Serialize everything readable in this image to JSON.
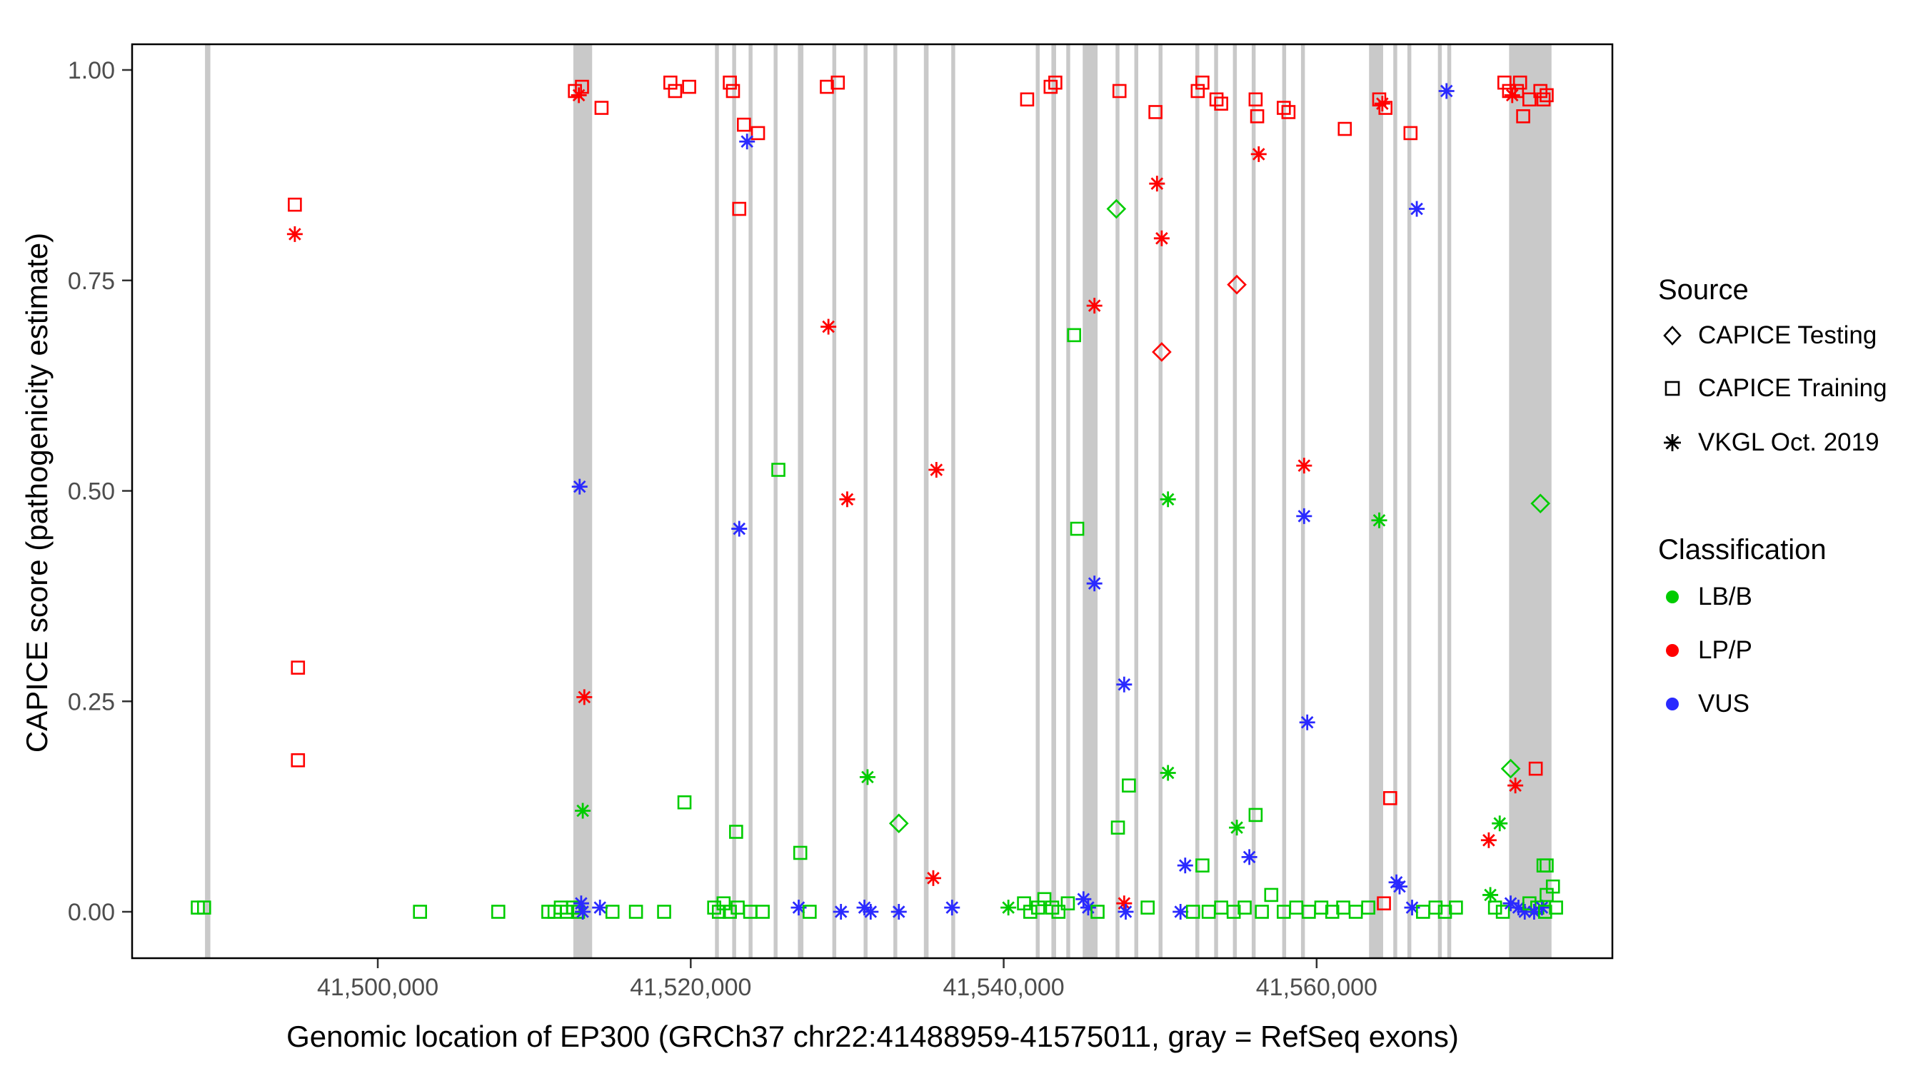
{
  "chart_data": {
    "type": "scatter",
    "title": "",
    "xlabel": "Genomic location of EP300 (GRCh37 chr22:41488959-41575011, gray = RefSeq exons)",
    "ylabel": "CAPICE score (pathogenicity estimate)",
    "xlim": [
      41484300,
      41578900
    ],
    "ylim": [
      0,
      1
    ],
    "x_ticks": [
      41500000,
      41520000,
      41540000,
      41560000
    ],
    "x_tick_labels": [
      "41,500,000",
      "41,520,000",
      "41,540,000",
      "41,560,000"
    ],
    "y_ticks": [
      0,
      0.25,
      0.5,
      0.75,
      1
    ],
    "y_tick_labels": [
      "0.00",
      "0.25",
      "0.50",
      "0.75",
      "1.00"
    ],
    "grid": false,
    "legend_position": "right",
    "legend": {
      "source": {
        "title": "Source",
        "items": [
          {
            "label": "CAPICE Testing",
            "shape": "diamond"
          },
          {
            "label": "CAPICE Training",
            "shape": "square"
          },
          {
            "label": "VKGL Oct. 2019",
            "shape": "asterisk"
          }
        ]
      },
      "classification": {
        "title": "Classification",
        "items": [
          {
            "label": "LB/B",
            "color_key": "B"
          },
          {
            "label": "LP/P",
            "color_key": "P"
          },
          {
            "label": "VUS",
            "color_key": "U"
          }
        ]
      }
    },
    "colors": {
      "B": "#00CC00",
      "P": "#FF0000",
      "U": "#2A2AFF"
    },
    "exon_color": "#C9C9C9",
    "source_codes": {
      "tr": "CAPICE Training",
      "te": "CAPICE Testing",
      "vk": "VKGL Oct. 2019"
    },
    "class_codes": {
      "B": "LB/B",
      "P": "LP/P",
      "U": "VUS"
    },
    "exons": [
      [
        41488959,
        41489300
      ],
      [
        41512500,
        41513700
      ],
      [
        41521550,
        41521800
      ],
      [
        41522650,
        41522900
      ],
      [
        41523700,
        41523950
      ],
      [
        41525300,
        41525550
      ],
      [
        41526850,
        41527200
      ],
      [
        41529050,
        41529300
      ],
      [
        41531050,
        41531300
      ],
      [
        41532950,
        41533200
      ],
      [
        41534900,
        41535200
      ],
      [
        41536650,
        41536900
      ],
      [
        41542050,
        41542300
      ],
      [
        41543050,
        41543350
      ],
      [
        41544000,
        41544250
      ],
      [
        41545050,
        41546000
      ],
      [
        41547150,
        41547400
      ],
      [
        41548350,
        41548600
      ],
      [
        41549900,
        41550150
      ],
      [
        41552250,
        41552500
      ],
      [
        41553450,
        41553700
      ],
      [
        41554650,
        41554900
      ],
      [
        41555850,
        41556100
      ],
      [
        41557800,
        41558050
      ],
      [
        41559000,
        41559250
      ],
      [
        41563350,
        41564250
      ],
      [
        41564900,
        41565150
      ],
      [
        41565800,
        41566050
      ],
      [
        41567750,
        41568000
      ],
      [
        41568350,
        41568600
      ],
      [
        41572300,
        41575011
      ]
    ],
    "points": [
      [
        41488500,
        0.005,
        "tr",
        "B"
      ],
      [
        41488900,
        0.005,
        "tr",
        "B"
      ],
      [
        41494700,
        0.84,
        "tr",
        "P"
      ],
      [
        41494700,
        0.805,
        "vk",
        "P"
      ],
      [
        41494900,
        0.29,
        "tr",
        "P"
      ],
      [
        41494900,
        0.18,
        "tr",
        "P"
      ],
      [
        41502700,
        0.0,
        "tr",
        "B"
      ],
      [
        41507700,
        0.0,
        "tr",
        "B"
      ],
      [
        41512600,
        0.975,
        "tr",
        "P"
      ],
      [
        41512850,
        0.97,
        "vk",
        "P"
      ],
      [
        41513050,
        0.98,
        "tr",
        "P"
      ],
      [
        41514300,
        0.955,
        "tr",
        "P"
      ],
      [
        41512900,
        0.505,
        "vk",
        "U"
      ],
      [
        41513200,
        0.255,
        "vk",
        "P"
      ],
      [
        41513100,
        0.12,
        "vk",
        "B"
      ],
      [
        41510900,
        0.0,
        "tr",
        "B"
      ],
      [
        41511300,
        0.0,
        "tr",
        "B"
      ],
      [
        41511700,
        0.005,
        "tr",
        "B"
      ],
      [
        41512100,
        0.0,
        "tr",
        "B"
      ],
      [
        41512500,
        0.005,
        "tr",
        "B"
      ],
      [
        41512800,
        0.0,
        "tr",
        "B"
      ],
      [
        41513000,
        0.01,
        "vk",
        "U"
      ],
      [
        41513100,
        0.0,
        "vk",
        "U"
      ],
      [
        41514200,
        0.005,
        "vk",
        "U"
      ],
      [
        41515000,
        0.0,
        "tr",
        "B"
      ],
      [
        41516500,
        0.0,
        "tr",
        "B"
      ],
      [
        41518700,
        0.985,
        "tr",
        "P"
      ],
      [
        41519000,
        0.975,
        "tr",
        "P"
      ],
      [
        41519900,
        0.98,
        "tr",
        "P"
      ],
      [
        41519600,
        0.13,
        "tr",
        "B"
      ],
      [
        41518300,
        0.0,
        "tr",
        "B"
      ],
      [
        41522500,
        0.985,
        "tr",
        "P"
      ],
      [
        41522700,
        0.975,
        "tr",
        "P"
      ],
      [
        41523100,
        0.835,
        "tr",
        "P"
      ],
      [
        41523400,
        0.935,
        "tr",
        "P"
      ],
      [
        41524300,
        0.925,
        "tr",
        "P"
      ],
      [
        41523600,
        0.915,
        "vk",
        "U"
      ],
      [
        41523100,
        0.455,
        "vk",
        "U"
      ],
      [
        41522900,
        0.095,
        "tr",
        "B"
      ],
      [
        41521500,
        0.005,
        "tr",
        "B"
      ],
      [
        41521800,
        0.0,
        "tr",
        "B"
      ],
      [
        41522100,
        0.01,
        "tr",
        "B"
      ],
      [
        41522500,
        0.0,
        "tr",
        "B"
      ],
      [
        41523000,
        0.005,
        "tr",
        "B"
      ],
      [
        41523800,
        0.0,
        "tr",
        "B"
      ],
      [
        41524600,
        0.0,
        "tr",
        "B"
      ],
      [
        41525600,
        0.525,
        "tr",
        "B"
      ],
      [
        41527000,
        0.07,
        "tr",
        "B"
      ],
      [
        41526900,
        0.005,
        "vk",
        "U"
      ],
      [
        41527600,
        0.0,
        "tr",
        "B"
      ],
      [
        41528700,
        0.98,
        "tr",
        "P"
      ],
      [
        41529400,
        0.985,
        "tr",
        "P"
      ],
      [
        41528800,
        0.695,
        "vk",
        "P"
      ],
      [
        41530000,
        0.49,
        "vk",
        "P"
      ],
      [
        41531300,
        0.16,
        "vk",
        "B"
      ],
      [
        41529600,
        0.0,
        "vk",
        "U"
      ],
      [
        41531100,
        0.005,
        "vk",
        "U"
      ],
      [
        41531500,
        0.0,
        "vk",
        "U"
      ],
      [
        41533300,
        0.105,
        "te",
        "B"
      ],
      [
        41533300,
        0.0,
        "vk",
        "U"
      ],
      [
        41535700,
        0.525,
        "vk",
        "P"
      ],
      [
        41535500,
        0.04,
        "vk",
        "P"
      ],
      [
        41536700,
        0.005,
        "vk",
        "U"
      ],
      [
        41540300,
        0.005,
        "vk",
        "B"
      ],
      [
        41541500,
        0.965,
        "tr",
        "P"
      ],
      [
        41543000,
        0.98,
        "tr",
        "P"
      ],
      [
        41543300,
        0.985,
        "tr",
        "P"
      ],
      [
        41541300,
        0.01,
        "tr",
        "B"
      ],
      [
        41541700,
        0.0,
        "tr",
        "B"
      ],
      [
        41542200,
        0.005,
        "tr",
        "B"
      ],
      [
        41542600,
        0.015,
        "tr",
        "B"
      ],
      [
        41543100,
        0.005,
        "tr",
        "B"
      ],
      [
        41543500,
        0.0,
        "tr",
        "B"
      ],
      [
        41544100,
        0.01,
        "tr",
        "B"
      ],
      [
        41544500,
        0.685,
        "tr",
        "B"
      ],
      [
        41544700,
        0.455,
        "tr",
        "B"
      ],
      [
        41545800,
        0.72,
        "vk",
        "P"
      ],
      [
        41545800,
        0.39,
        "vk",
        "U"
      ],
      [
        41545100,
        0.015,
        "vk",
        "U"
      ],
      [
        41545400,
        0.005,
        "vk",
        "U"
      ],
      [
        41546000,
        0.0,
        "tr",
        "B"
      ],
      [
        41547700,
        0.01,
        "vk",
        "P"
      ],
      [
        41547800,
        0.0,
        "vk",
        "U"
      ],
      [
        41547400,
        0.975,
        "tr",
        "P"
      ],
      [
        41547200,
        0.835,
        "te",
        "B"
      ],
      [
        41547700,
        0.27,
        "vk",
        "U"
      ],
      [
        41548000,
        0.15,
        "tr",
        "B"
      ],
      [
        41547300,
        0.1,
        "tr",
        "B"
      ],
      [
        41549200,
        0.005,
        "tr",
        "B"
      ],
      [
        41549700,
        0.95,
        "tr",
        "P"
      ],
      [
        41549800,
        0.865,
        "vk",
        "P"
      ],
      [
        41550100,
        0.8,
        "vk",
        "P"
      ],
      [
        41550100,
        0.665,
        "te",
        "P"
      ],
      [
        41550500,
        0.49,
        "vk",
        "B"
      ],
      [
        41550500,
        0.165,
        "vk",
        "B"
      ],
      [
        41551600,
        0.055,
        "vk",
        "U"
      ],
      [
        41552700,
        0.055,
        "tr",
        "B"
      ],
      [
        41551300,
        0.0,
        "vk",
        "U"
      ],
      [
        41552100,
        0.0,
        "tr",
        "B"
      ],
      [
        41552400,
        0.975,
        "tr",
        "P"
      ],
      [
        41552700,
        0.985,
        "tr",
        "P"
      ],
      [
        41553600,
        0.965,
        "tr",
        "P"
      ],
      [
        41553900,
        0.96,
        "tr",
        "P"
      ],
      [
        41553100,
        0.0,
        "tr",
        "B"
      ],
      [
        41553900,
        0.005,
        "tr",
        "B"
      ],
      [
        41554900,
        0.745,
        "te",
        "P"
      ],
      [
        41554900,
        0.1,
        "vk",
        "B"
      ],
      [
        41556100,
        0.965,
        "tr",
        "P"
      ],
      [
        41556200,
        0.945,
        "tr",
        "P"
      ],
      [
        41556300,
        0.9,
        "vk",
        "P"
      ],
      [
        41556100,
        0.115,
        "tr",
        "B"
      ],
      [
        41555700,
        0.065,
        "vk",
        "U"
      ],
      [
        41554700,
        0.0,
        "tr",
        "B"
      ],
      [
        41555400,
        0.005,
        "tr",
        "B"
      ],
      [
        41556500,
        0.0,
        "tr",
        "B"
      ],
      [
        41557100,
        0.02,
        "tr",
        "B"
      ],
      [
        41557900,
        0.955,
        "tr",
        "P"
      ],
      [
        41558200,
        0.95,
        "tr",
        "P"
      ],
      [
        41559200,
        0.53,
        "vk",
        "P"
      ],
      [
        41559200,
        0.47,
        "vk",
        "U"
      ],
      [
        41559400,
        0.225,
        "vk",
        "U"
      ],
      [
        41557900,
        0.0,
        "tr",
        "B"
      ],
      [
        41558700,
        0.005,
        "tr",
        "B"
      ],
      [
        41559500,
        0.0,
        "tr",
        "B"
      ],
      [
        41561800,
        0.93,
        "tr",
        "P"
      ],
      [
        41560300,
        0.005,
        "tr",
        "B"
      ],
      [
        41561000,
        0.0,
        "tr",
        "B"
      ],
      [
        41561700,
        0.005,
        "tr",
        "B"
      ],
      [
        41562500,
        0.0,
        "tr",
        "B"
      ],
      [
        41563300,
        0.005,
        "tr",
        "B"
      ],
      [
        41564000,
        0.965,
        "tr",
        "P"
      ],
      [
        41564200,
        0.96,
        "vk",
        "P"
      ],
      [
        41564400,
        0.955,
        "tr",
        "P"
      ],
      [
        41564000,
        0.465,
        "vk",
        "B"
      ],
      [
        41564700,
        0.135,
        "tr",
        "P"
      ],
      [
        41565100,
        0.035,
        "vk",
        "U"
      ],
      [
        41565300,
        0.03,
        "vk",
        "U"
      ],
      [
        41564300,
        0.01,
        "tr",
        "P"
      ],
      [
        41566000,
        0.925,
        "tr",
        "P"
      ],
      [
        41566400,
        0.835,
        "vk",
        "U"
      ],
      [
        41566100,
        0.005,
        "vk",
        "U"
      ],
      [
        41566800,
        0.0,
        "tr",
        "B"
      ],
      [
        41567600,
        0.005,
        "tr",
        "B"
      ],
      [
        41568300,
        0.975,
        "vk",
        "U"
      ],
      [
        41568200,
        0.0,
        "tr",
        "B"
      ],
      [
        41568900,
        0.005,
        "tr",
        "B"
      ],
      [
        41572000,
        0.985,
        "tr",
        "P"
      ],
      [
        41572300,
        0.975,
        "tr",
        "P"
      ],
      [
        41572500,
        0.97,
        "vk",
        "P"
      ],
      [
        41572800,
        0.975,
        "tr",
        "P"
      ],
      [
        41573000,
        0.985,
        "tr",
        "P"
      ],
      [
        41573200,
        0.945,
        "tr",
        "P"
      ],
      [
        41573600,
        0.965,
        "tr",
        "P"
      ],
      [
        41574300,
        0.975,
        "tr",
        "P"
      ],
      [
        41574500,
        0.965,
        "tr",
        "P"
      ],
      [
        41574700,
        0.97,
        "tr",
        "P"
      ],
      [
        41574300,
        0.485,
        "te",
        "B"
      ],
      [
        41572400,
        0.17,
        "te",
        "B"
      ],
      [
        41574000,
        0.17,
        "tr",
        "P"
      ],
      [
        41572700,
        0.15,
        "vk",
        "P"
      ],
      [
        41571000,
        0.085,
        "vk",
        "P"
      ],
      [
        41571700,
        0.105,
        "vk",
        "B"
      ],
      [
        41574500,
        0.055,
        "tr",
        "B"
      ],
      [
        41574700,
        0.055,
        "tr",
        "B"
      ],
      [
        41571100,
        0.02,
        "vk",
        "B"
      ],
      [
        41571400,
        0.005,
        "tr",
        "B"
      ],
      [
        41571900,
        0.0,
        "tr",
        "B"
      ],
      [
        41572400,
        0.01,
        "vk",
        "U"
      ],
      [
        41572900,
        0.005,
        "vk",
        "U"
      ],
      [
        41573300,
        0.0,
        "vk",
        "U"
      ],
      [
        41573600,
        0.01,
        "tr",
        "B"
      ],
      [
        41574100,
        0.005,
        "tr",
        "B"
      ],
      [
        41574400,
        0.005,
        "vk",
        "U"
      ],
      [
        41574700,
        0.02,
        "tr",
        "B"
      ],
      [
        41575100,
        0.03,
        "tr",
        "B"
      ],
      [
        41575300,
        0.005,
        "tr",
        "B"
      ],
      [
        41573900,
        0.0,
        "vk",
        "U"
      ],
      [
        41574600,
        0.0,
        "tr",
        "B"
      ]
    ]
  }
}
